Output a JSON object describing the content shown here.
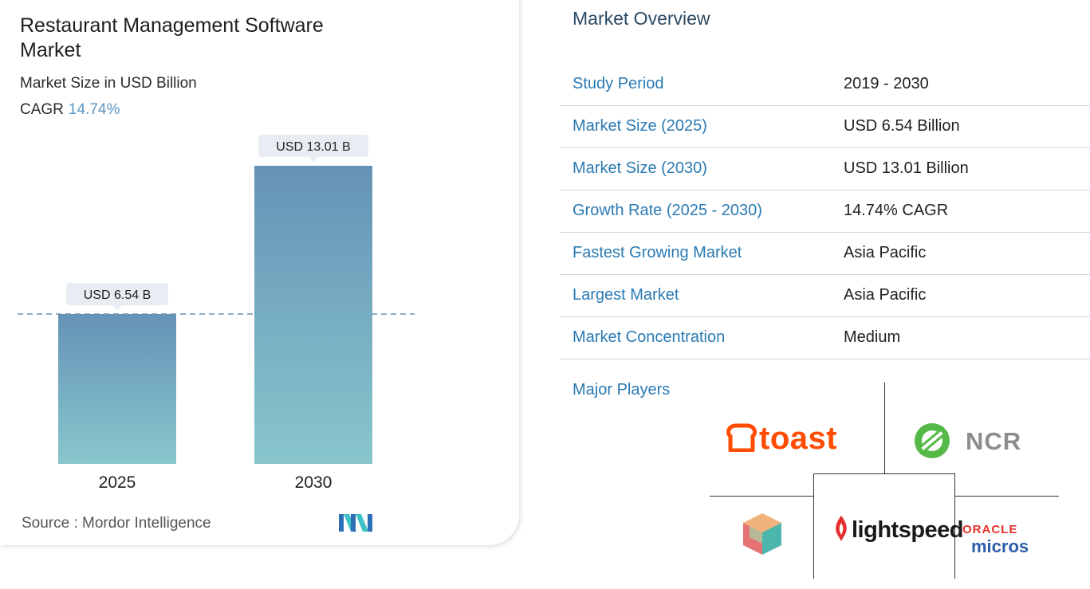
{
  "left_panel": {
    "title": "Restaurant Management Software Market",
    "subtitle": "Market Size in USD Billion",
    "cagr_label": "CAGR",
    "cagr_value": "14.74%",
    "source": "Source :  Mordor Intelligence"
  },
  "chart_data": {
    "type": "bar",
    "categories": [
      "2025",
      "2030"
    ],
    "values": [
      6.54,
      13.01
    ],
    "data_labels": [
      "USD 6.54 B",
      "USD 13.01 B"
    ],
    "unit": "USD Billion",
    "ylim": [
      0,
      13.01
    ],
    "reference_line_value": 6.54,
    "bar_gradient": [
      "#6593b7",
      "#88c6cc"
    ]
  },
  "overview": {
    "title": "Market Overview",
    "rows": [
      {
        "label": "Study Period",
        "value": "2019 - 2030"
      },
      {
        "label": "Market Size (2025)",
        "value": "USD 6.54 Billion"
      },
      {
        "label": "Market Size (2030)",
        "value": "USD 13.01 Billion"
      },
      {
        "label": "Growth Rate (2025 - 2030)",
        "value": "14.74% CAGR"
      },
      {
        "label": "Fastest Growing Market",
        "value": "Asia Pacific"
      },
      {
        "label": "Largest Market",
        "value": "Asia Pacific"
      },
      {
        "label": "Market Concentration",
        "value": "Medium"
      }
    ],
    "major_players_label": "Major Players",
    "players": {
      "toast": "toast",
      "ncr": "NCR",
      "lightspeed": "lightspeed",
      "oracle": "ORACLE",
      "micros": "micros"
    }
  },
  "colors": {
    "accent_blue": "#2a7ab3",
    "cagr_blue": "#5b95c2",
    "toast_orange": "#ff4c00",
    "ncr_green": "#55b947",
    "oracle_red": "#e5322b",
    "micros_blue": "#2b5fa8"
  }
}
